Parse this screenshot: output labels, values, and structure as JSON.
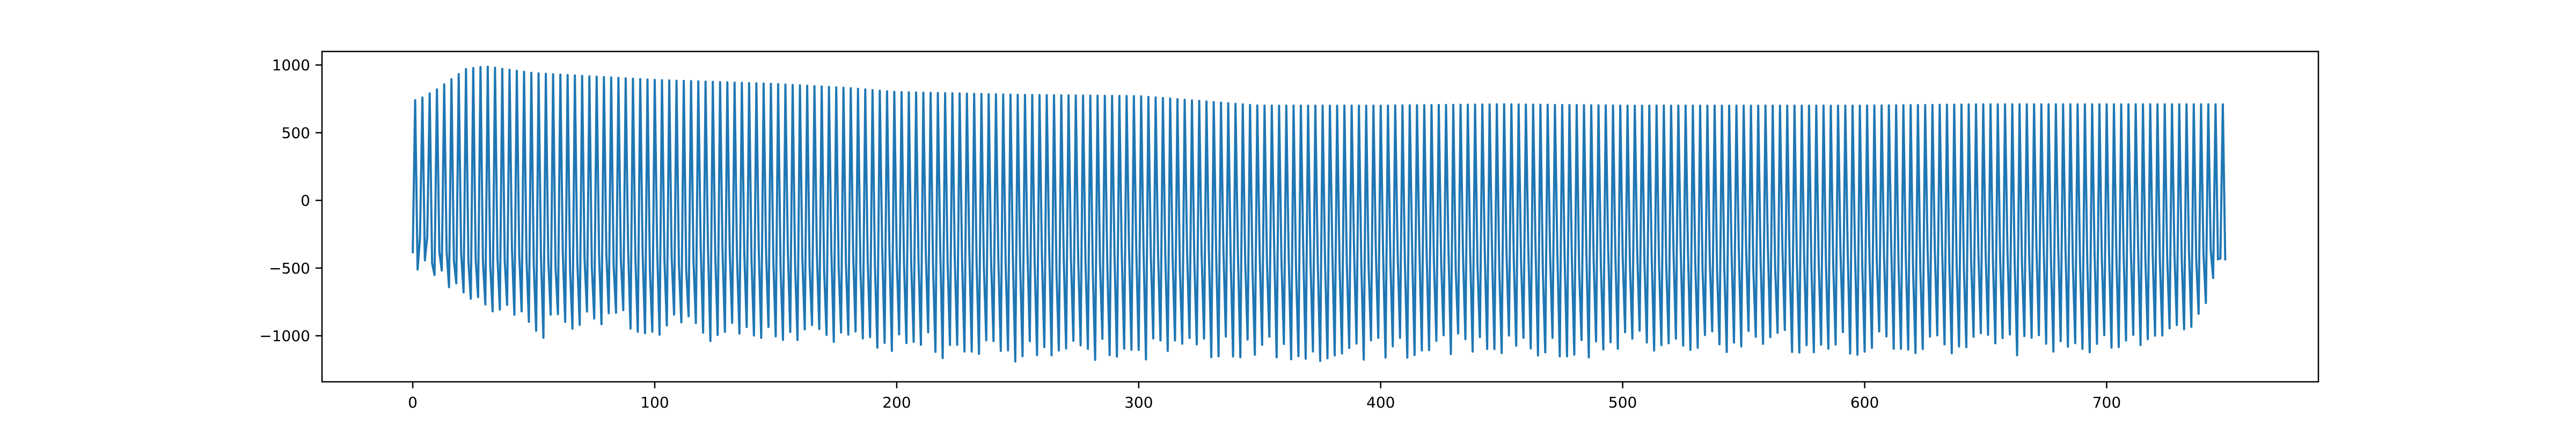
{
  "chart_data": {
    "type": "line",
    "title": "",
    "xlabel": "",
    "ylabel": "",
    "xlim": [
      -37.5,
      787.5
    ],
    "ylim": [
      -1340,
      1100
    ],
    "grid": false,
    "legend": "none",
    "color": "#1f77b4",
    "xticks": [
      0,
      100,
      200,
      300,
      400,
      500,
      600,
      700
    ],
    "xtick_labels": [
      "0",
      "100",
      "200",
      "300",
      "400",
      "500",
      "600",
      "700"
    ],
    "yticks": [
      -1000,
      -500,
      0,
      500,
      1000
    ],
    "ytick_labels": [
      "−1000",
      "−500",
      "0",
      "500",
      "1000"
    ],
    "series": [
      {
        "period": 3,
        "x_start": 0,
        "x_end": 749,
        "start_value": -390,
        "peaks": [
          [
            2,
            740
          ],
          [
            10,
            820
          ],
          [
            22,
            970
          ],
          [
            30,
            990
          ],
          [
            50,
            940
          ],
          [
            70,
            920
          ],
          [
            100,
            890
          ],
          [
            150,
            860
          ],
          [
            180,
            830
          ],
          [
            200,
            800
          ],
          [
            250,
            780
          ],
          [
            300,
            770
          ],
          [
            350,
            700
          ],
          [
            400,
            700
          ],
          [
            450,
            710
          ],
          [
            500,
            700
          ],
          [
            550,
            700
          ],
          [
            600,
            700
          ],
          [
            650,
            710
          ],
          [
            700,
            710
          ],
          [
            749,
            710
          ]
        ],
        "troughs": [
          [
            5,
            -380
          ],
          [
            8,
            -550
          ],
          [
            12,
            -610
          ],
          [
            18,
            -720
          ],
          [
            30,
            -830
          ],
          [
            40,
            -900
          ],
          [
            50,
            -1030
          ],
          [
            70,
            -990
          ],
          [
            100,
            -990
          ],
          [
            125,
            -1050
          ],
          [
            155,
            -1080
          ],
          [
            180,
            -1120
          ],
          [
            200,
            -1120
          ],
          [
            220,
            -1170
          ],
          [
            246,
            -1230
          ],
          [
            265,
            -1150
          ],
          [
            290,
            -1200
          ],
          [
            340,
            -1160
          ],
          [
            370,
            -1190
          ],
          [
            400,
            -1180
          ],
          [
            440,
            -1130
          ],
          [
            480,
            -1180
          ],
          [
            520,
            -1120
          ],
          [
            550,
            -1130
          ],
          [
            600,
            -1150
          ],
          [
            630,
            -1120
          ],
          [
            653,
            -1160
          ],
          [
            680,
            -1130
          ],
          [
            700,
            -1130
          ],
          [
            740,
            -1000
          ],
          [
            749,
            -320
          ]
        ],
        "mid_band": [
          -520,
          -350
        ]
      }
    ]
  }
}
